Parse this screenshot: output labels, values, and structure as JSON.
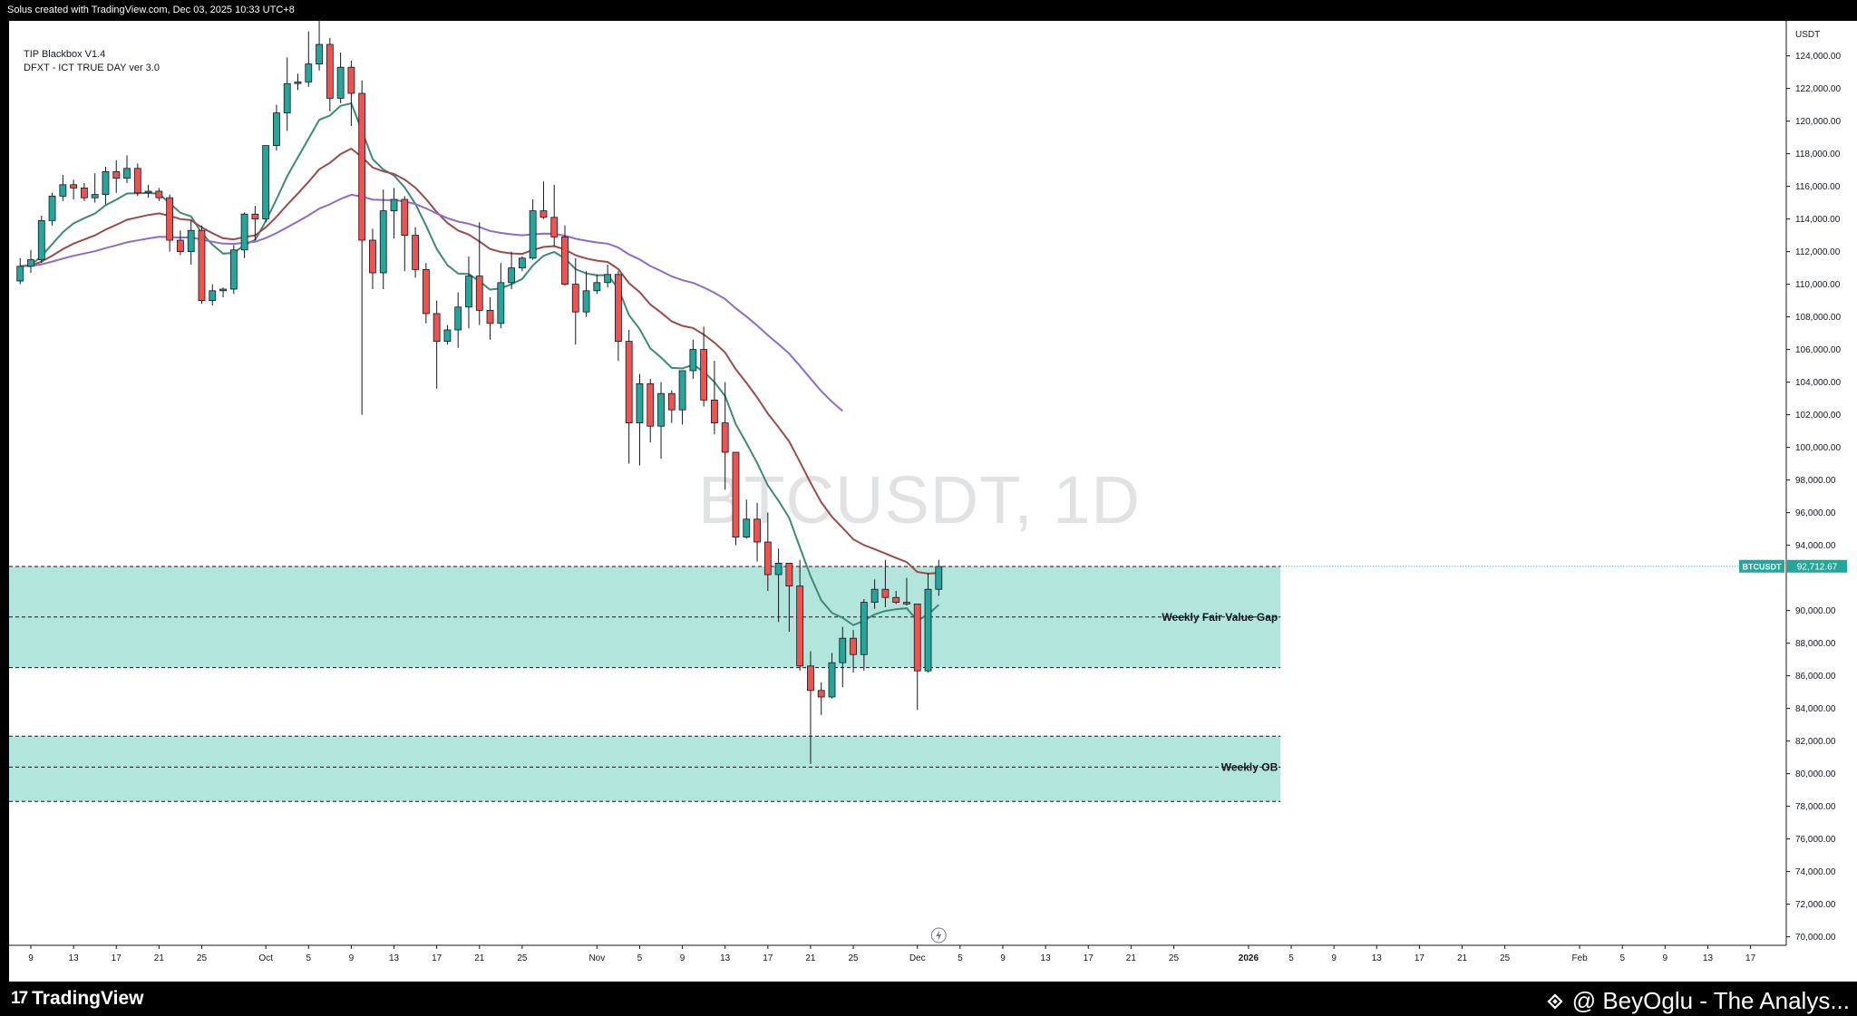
{
  "header": {
    "caption": "Solus created with TradingView.com, Dec 03, 2025 10:33 UTC+8"
  },
  "indicators": [
    "TIP Blackbox V1.4",
    "DFXT - ICT TRUE DAY ver 3.0"
  ],
  "watermark": "BTCUSDT, 1D",
  "footer": {
    "brand": "TradingView",
    "author": "@ BeyOglu - The Analys..."
  },
  "colors": {
    "bull": "#26a69a",
    "bear": "#ef5350",
    "zone": "#b2e5dc",
    "ema_fast": "#3d8a78",
    "ema_mid": "#9c4b4b",
    "ema_slow": "#8d6cc9"
  },
  "chart_data": {
    "type": "candlestick",
    "symbol": "BTCUSDT",
    "timeframe": "1D",
    "currency_label": "USDT",
    "last_price": "92,712.67",
    "last_price_value": 92712.67,
    "ylim": [
      70000,
      125500
    ],
    "y_ticks": [
      {
        "value": 124000,
        "label": "124,000.00"
      },
      {
        "value": 122000,
        "label": "122,000.00"
      },
      {
        "value": 120000,
        "label": "120,000.00"
      },
      {
        "value": 118000,
        "label": "118,000.00"
      },
      {
        "value": 116000,
        "label": "116,000.00"
      },
      {
        "value": 114000,
        "label": "114,000.00"
      },
      {
        "value": 112000,
        "label": "112,000.00"
      },
      {
        "value": 110000,
        "label": "110,000.00"
      },
      {
        "value": 108000,
        "label": "108,000.00"
      },
      {
        "value": 106000,
        "label": "106,000.00"
      },
      {
        "value": 104000,
        "label": "104,000.00"
      },
      {
        "value": 102000,
        "label": "102,000.00"
      },
      {
        "value": 100000,
        "label": "100,000.00"
      },
      {
        "value": 98000,
        "label": "98,000.00"
      },
      {
        "value": 96000,
        "label": "96,000.00"
      },
      {
        "value": 94000,
        "label": "94,000.00"
      },
      {
        "value": 90000,
        "label": "90,000.00"
      },
      {
        "value": 88000,
        "label": "88,000.00"
      },
      {
        "value": 86000,
        "label": "86,000.00"
      },
      {
        "value": 84000,
        "label": "84,000.00"
      },
      {
        "value": 82000,
        "label": "82,000.00"
      },
      {
        "value": 80000,
        "label": "80,000.00"
      },
      {
        "value": 78000,
        "label": "78,000.00"
      },
      {
        "value": 76000,
        "label": "76,000.00"
      },
      {
        "value": 74000,
        "label": "74,000.00"
      },
      {
        "value": 72000,
        "label": "72,000.00"
      },
      {
        "value": 70000,
        "label": "70,000.00"
      }
    ],
    "x_ticks": [
      {
        "date": "2025-09-09",
        "label": "9"
      },
      {
        "date": "2025-09-13",
        "label": "13"
      },
      {
        "date": "2025-09-17",
        "label": "17"
      },
      {
        "date": "2025-09-21",
        "label": "21"
      },
      {
        "date": "2025-09-25",
        "label": "25"
      },
      {
        "date": "2025-10-01",
        "label": "Oct"
      },
      {
        "date": "2025-10-05",
        "label": "5"
      },
      {
        "date": "2025-10-09",
        "label": "9"
      },
      {
        "date": "2025-10-13",
        "label": "13"
      },
      {
        "date": "2025-10-17",
        "label": "17"
      },
      {
        "date": "2025-10-21",
        "label": "21"
      },
      {
        "date": "2025-10-25",
        "label": "25"
      },
      {
        "date": "2025-11-01",
        "label": "Nov"
      },
      {
        "date": "2025-11-05",
        "label": "5"
      },
      {
        "date": "2025-11-09",
        "label": "9"
      },
      {
        "date": "2025-11-13",
        "label": "13"
      },
      {
        "date": "2025-11-17",
        "label": "17"
      },
      {
        "date": "2025-11-21",
        "label": "21"
      },
      {
        "date": "2025-11-25",
        "label": "25"
      },
      {
        "date": "2025-12-01",
        "label": "Dec"
      },
      {
        "date": "2025-12-05",
        "label": "5"
      },
      {
        "date": "2025-12-09",
        "label": "9"
      },
      {
        "date": "2025-12-13",
        "label": "13"
      },
      {
        "date": "2025-12-17",
        "label": "17"
      },
      {
        "date": "2025-12-21",
        "label": "21"
      },
      {
        "date": "2025-12-25",
        "label": "25"
      },
      {
        "date": "2026-01-01",
        "label": "2026"
      },
      {
        "date": "2026-01-05",
        "label": "5"
      },
      {
        "date": "2026-01-09",
        "label": "9"
      },
      {
        "date": "2026-01-13",
        "label": "13"
      },
      {
        "date": "2026-01-17",
        "label": "17"
      },
      {
        "date": "2026-01-21",
        "label": "21"
      },
      {
        "date": "2026-01-25",
        "label": "25"
      },
      {
        "date": "2026-02-01",
        "label": "Feb"
      },
      {
        "date": "2026-02-05",
        "label": "5"
      },
      {
        "date": "2026-02-09",
        "label": "9"
      },
      {
        "date": "2026-02-13",
        "label": "13"
      },
      {
        "date": "2026-02-17",
        "label": "17"
      }
    ],
    "zones": [
      {
        "name": "Weekly Fair Value Gap",
        "label": "Weekly Fair Value Gap",
        "top": 92700,
        "bottom": 86500,
        "mid": 89600,
        "x_end": "2026-01-04"
      },
      {
        "name": "Weekly OB",
        "label": "Weekly OB",
        "top": 82300,
        "bottom": 78300,
        "mid": 80400,
        "x_end": "2026-01-04"
      }
    ],
    "candles": [
      {
        "d": "2025-09-08",
        "o": 110200,
        "h": 111600,
        "l": 110000,
        "c": 111100
      },
      {
        "d": "2025-09-09",
        "o": 111100,
        "h": 112100,
        "l": 110700,
        "c": 111500
      },
      {
        "d": "2025-09-10",
        "o": 111500,
        "h": 114200,
        "l": 111300,
        "c": 113900
      },
      {
        "d": "2025-09-11",
        "o": 113900,
        "h": 115600,
        "l": 113600,
        "c": 115400
      },
      {
        "d": "2025-09-12",
        "o": 115400,
        "h": 116700,
        "l": 115100,
        "c": 116100
      },
      {
        "d": "2025-09-13",
        "o": 116100,
        "h": 116400,
        "l": 115200,
        "c": 115900
      },
      {
        "d": "2025-09-14",
        "o": 115900,
        "h": 116200,
        "l": 115100,
        "c": 115300
      },
      {
        "d": "2025-09-15",
        "o": 115300,
        "h": 116800,
        "l": 115000,
        "c": 115500
      },
      {
        "d": "2025-09-16",
        "o": 115500,
        "h": 117200,
        "l": 114900,
        "c": 116900
      },
      {
        "d": "2025-09-17",
        "o": 116900,
        "h": 117600,
        "l": 115600,
        "c": 116500
      },
      {
        "d": "2025-09-18",
        "o": 116500,
        "h": 117900,
        "l": 116200,
        "c": 117100
      },
      {
        "d": "2025-09-19",
        "o": 117100,
        "h": 117400,
        "l": 115400,
        "c": 115600
      },
      {
        "d": "2025-09-20",
        "o": 115600,
        "h": 116100,
        "l": 115300,
        "c": 115700
      },
      {
        "d": "2025-09-21",
        "o": 115700,
        "h": 115900,
        "l": 115100,
        "c": 115300
      },
      {
        "d": "2025-09-22",
        "o": 115300,
        "h": 115500,
        "l": 112000,
        "c": 112700
      },
      {
        "d": "2025-09-23",
        "o": 112700,
        "h": 113300,
        "l": 111800,
        "c": 112000
      },
      {
        "d": "2025-09-24",
        "o": 112000,
        "h": 113900,
        "l": 111200,
        "c": 113300
      },
      {
        "d": "2025-09-25",
        "o": 113300,
        "h": 113600,
        "l": 108800,
        "c": 109000
      },
      {
        "d": "2025-09-26",
        "o": 109000,
        "h": 110000,
        "l": 108700,
        "c": 109600
      },
      {
        "d": "2025-09-27",
        "o": 109600,
        "h": 109800,
        "l": 109200,
        "c": 109700
      },
      {
        "d": "2025-09-28",
        "o": 109700,
        "h": 112400,
        "l": 109400,
        "c": 112100
      },
      {
        "d": "2025-09-29",
        "o": 112100,
        "h": 114400,
        "l": 111600,
        "c": 114300
      },
      {
        "d": "2025-09-30",
        "o": 114300,
        "h": 114800,
        "l": 112700,
        "c": 114000
      },
      {
        "d": "2025-10-01",
        "o": 114000,
        "h": 118500,
        "l": 113800,
        "c": 118500
      },
      {
        "d": "2025-10-02",
        "o": 118500,
        "h": 121000,
        "l": 118200,
        "c": 120500
      },
      {
        "d": "2025-10-03",
        "o": 120500,
        "h": 123900,
        "l": 119400,
        "c": 122300
      },
      {
        "d": "2025-10-04",
        "o": 122300,
        "h": 122900,
        "l": 121900,
        "c": 122400
      },
      {
        "d": "2025-10-05",
        "o": 122400,
        "h": 125500,
        "l": 122100,
        "c": 123500
      },
      {
        "d": "2025-10-06",
        "o": 123500,
        "h": 126200,
        "l": 123100,
        "c": 124700
      },
      {
        "d": "2025-10-07",
        "o": 124700,
        "h": 125100,
        "l": 120600,
        "c": 121400
      },
      {
        "d": "2025-10-08",
        "o": 121400,
        "h": 124200,
        "l": 121100,
        "c": 123300
      },
      {
        "d": "2025-10-09",
        "o": 123300,
        "h": 123700,
        "l": 119700,
        "c": 121700
      },
      {
        "d": "2025-10-10",
        "o": 121700,
        "h": 122500,
        "l": 102000,
        "c": 112700
      },
      {
        "d": "2025-10-11",
        "o": 112700,
        "h": 113400,
        "l": 109700,
        "c": 110700
      },
      {
        "d": "2025-10-12",
        "o": 110700,
        "h": 115800,
        "l": 109700,
        "c": 114500
      },
      {
        "d": "2025-10-13",
        "o": 114500,
        "h": 115900,
        "l": 112800,
        "c": 115200
      },
      {
        "d": "2025-10-14",
        "o": 115200,
        "h": 115400,
        "l": 110800,
        "c": 113000
      },
      {
        "d": "2025-10-15",
        "o": 113000,
        "h": 113500,
        "l": 110400,
        "c": 110900
      },
      {
        "d": "2025-10-16",
        "o": 110900,
        "h": 111300,
        "l": 107600,
        "c": 108200
      },
      {
        "d": "2025-10-17",
        "o": 108200,
        "h": 109000,
        "l": 103600,
        "c": 106500
      },
      {
        "d": "2025-10-18",
        "o": 106500,
        "h": 107500,
        "l": 106300,
        "c": 107200
      },
      {
        "d": "2025-10-19",
        "o": 107200,
        "h": 109500,
        "l": 106100,
        "c": 108600
      },
      {
        "d": "2025-10-20",
        "o": 108600,
        "h": 111700,
        "l": 107300,
        "c": 110500
      },
      {
        "d": "2025-10-21",
        "o": 110500,
        "h": 113800,
        "l": 107500,
        "c": 108400
      },
      {
        "d": "2025-10-22",
        "o": 108400,
        "h": 109200,
        "l": 106600,
        "c": 107600
      },
      {
        "d": "2025-10-23",
        "o": 107600,
        "h": 111300,
        "l": 107300,
        "c": 110100
      },
      {
        "d": "2025-10-24",
        "o": 110100,
        "h": 112000,
        "l": 109700,
        "c": 111000
      },
      {
        "d": "2025-10-25",
        "o": 111000,
        "h": 111700,
        "l": 110800,
        "c": 111600
      },
      {
        "d": "2025-10-26",
        "o": 111600,
        "h": 115200,
        "l": 111500,
        "c": 114500
      },
      {
        "d": "2025-10-27",
        "o": 114500,
        "h": 116300,
        "l": 114000,
        "c": 114100
      },
      {
        "d": "2025-10-28",
        "o": 114100,
        "h": 116100,
        "l": 112300,
        "c": 112900
      },
      {
        "d": "2025-10-29",
        "o": 112900,
        "h": 113600,
        "l": 109900,
        "c": 110000
      },
      {
        "d": "2025-10-30",
        "o": 110000,
        "h": 111600,
        "l": 106300,
        "c": 108300
      },
      {
        "d": "2025-10-31",
        "o": 108300,
        "h": 110800,
        "l": 108000,
        "c": 109600
      },
      {
        "d": "2025-11-01",
        "o": 109600,
        "h": 110600,
        "l": 109400,
        "c": 110100
      },
      {
        "d": "2025-11-02",
        "o": 110100,
        "h": 111200,
        "l": 109800,
        "c": 110600
      },
      {
        "d": "2025-11-03",
        "o": 110600,
        "h": 110800,
        "l": 105300,
        "c": 106500
      },
      {
        "d": "2025-11-04",
        "o": 106500,
        "h": 107200,
        "l": 99000,
        "c": 101500
      },
      {
        "d": "2025-11-05",
        "o": 101500,
        "h": 104500,
        "l": 98900,
        "c": 103900
      },
      {
        "d": "2025-11-06",
        "o": 103900,
        "h": 104200,
        "l": 100300,
        "c": 101300
      },
      {
        "d": "2025-11-07",
        "o": 101300,
        "h": 104000,
        "l": 99300,
        "c": 103300
      },
      {
        "d": "2025-11-08",
        "o": 103300,
        "h": 103500,
        "l": 101500,
        "c": 102300
      },
      {
        "d": "2025-11-09",
        "o": 102300,
        "h": 104600,
        "l": 101400,
        "c": 104700
      },
      {
        "d": "2025-11-10",
        "o": 104700,
        "h": 106600,
        "l": 104200,
        "c": 106000
      },
      {
        "d": "2025-11-11",
        "o": 106000,
        "h": 107400,
        "l": 102500,
        "c": 102900
      },
      {
        "d": "2025-11-12",
        "o": 102900,
        "h": 105300,
        "l": 100800,
        "c": 101500
      },
      {
        "d": "2025-11-13",
        "o": 101500,
        "h": 104000,
        "l": 97400,
        "c": 99700
      },
      {
        "d": "2025-11-14",
        "o": 99700,
        "h": 99700,
        "l": 94000,
        "c": 94500
      },
      {
        "d": "2025-11-15",
        "o": 94500,
        "h": 96800,
        "l": 94400,
        "c": 95600
      },
      {
        "d": "2025-11-16",
        "o": 95600,
        "h": 96600,
        "l": 93000,
        "c": 94200
      },
      {
        "d": "2025-11-17",
        "o": 94200,
        "h": 96000,
        "l": 91200,
        "c": 92200
      },
      {
        "d": "2025-11-18",
        "o": 92200,
        "h": 93800,
        "l": 89300,
        "c": 92900
      },
      {
        "d": "2025-11-19",
        "o": 92900,
        "h": 92900,
        "l": 88700,
        "c": 91500
      },
      {
        "d": "2025-11-20",
        "o": 91500,
        "h": 93100,
        "l": 86300,
        "c": 86600
      },
      {
        "d": "2025-11-21",
        "o": 86600,
        "h": 87500,
        "l": 80600,
        "c": 85100
      },
      {
        "d": "2025-11-22",
        "o": 85100,
        "h": 85600,
        "l": 83600,
        "c": 84700
      },
      {
        "d": "2025-11-23",
        "o": 84700,
        "h": 87400,
        "l": 84600,
        "c": 86800
      },
      {
        "d": "2025-11-24",
        "o": 86800,
        "h": 89000,
        "l": 85300,
        "c": 88300
      },
      {
        "d": "2025-11-25",
        "o": 88300,
        "h": 88800,
        "l": 86200,
        "c": 87300
      },
      {
        "d": "2025-11-26",
        "o": 87300,
        "h": 90700,
        "l": 86300,
        "c": 90500
      },
      {
        "d": "2025-11-27",
        "o": 90500,
        "h": 91900,
        "l": 90100,
        "c": 91300
      },
      {
        "d": "2025-11-28",
        "o": 91300,
        "h": 93100,
        "l": 90200,
        "c": 90800
      },
      {
        "d": "2025-11-29",
        "o": 90800,
        "h": 91200,
        "l": 90400,
        "c": 90500
      },
      {
        "d": "2025-11-30",
        "o": 90500,
        "h": 92000,
        "l": 90300,
        "c": 90400
      },
      {
        "d": "2025-12-01",
        "o": 90400,
        "h": 90400,
        "l": 83900,
        "c": 86300
      },
      {
        "d": "2025-12-02",
        "o": 86300,
        "h": 92300,
        "l": 86200,
        "c": 91300
      },
      {
        "d": "2025-12-03",
        "o": 91300,
        "h": 93100,
        "l": 90900,
        "c": 92700
      }
    ]
  }
}
